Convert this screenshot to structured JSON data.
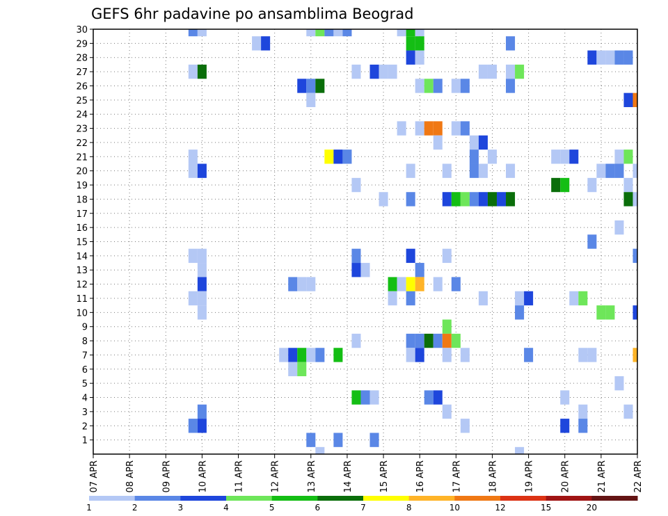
{
  "chart_data": {
    "type": "heatmap",
    "title": "GEFS 6hr padavine po ansamblima Beograd",
    "xlabel": "",
    "ylabel": "",
    "x_ticks": [
      "07 APR",
      "08 APR",
      "09 APR",
      "10 APR",
      "11 APR",
      "12 APR",
      "13 APR",
      "14 APR",
      "15 APR",
      "16 APR",
      "17 APR",
      "18 APR",
      "19 APR",
      "20 APR",
      "21 APR",
      "22 APR"
    ],
    "y_ticks": [
      "1",
      "2",
      "3",
      "4",
      "5",
      "6",
      "7",
      "8",
      "9",
      "10",
      "11",
      "12",
      "13",
      "14",
      "15",
      "16",
      "17",
      "18",
      "19",
      "20",
      "21",
      "22",
      "23",
      "24",
      "25",
      "26",
      "27",
      "28",
      "29",
      "30"
    ],
    "y_range": [
      0,
      30
    ],
    "x_step_hours": 6,
    "grid": true,
    "grid_style": "dotted",
    "legend": {
      "placement": "bottom",
      "thresholds": [
        "1",
        "2",
        "3",
        "4",
        "5",
        "6",
        "7",
        "8",
        "10",
        "12",
        "15",
        "20"
      ],
      "colors": [
        "#b4c8f5",
        "#5a87e6",
        "#1e46dc",
        "#6ee65a",
        "#14be14",
        "#0a6e0a",
        "#ffff00",
        "#ffb428",
        "#f07814",
        "#dc3214",
        "#a01414",
        "#641414"
      ]
    },
    "cells": [
      {
        "member": 30,
        "time": "09 APR 18Z",
        "level": 2
      },
      {
        "member": 30,
        "time": "10 APR 00Z",
        "level": 1
      },
      {
        "member": 30,
        "time": "13 APR 00Z",
        "level": 1
      },
      {
        "member": 30,
        "time": "13 APR 06Z",
        "level": 4
      },
      {
        "member": 30,
        "time": "13 APR 12Z",
        "level": 2
      },
      {
        "member": 30,
        "time": "13 APR 18Z",
        "level": 1
      },
      {
        "member": 30,
        "time": "14 APR 00Z",
        "level": 2
      },
      {
        "member": 30,
        "time": "15 APR 12Z",
        "level": 1
      },
      {
        "member": 30,
        "time": "15 APR 18Z",
        "level": 5
      },
      {
        "member": 30,
        "time": "16 APR 00Z",
        "level": 1
      },
      {
        "member": 29,
        "time": "11 APR 12Z",
        "level": 1
      },
      {
        "member": 29,
        "time": "11 APR 18Z",
        "level": 3
      },
      {
        "member": 29,
        "time": "15 APR 18Z",
        "level": 5
      },
      {
        "member": 29,
        "time": "16 APR 00Z",
        "level": 5
      },
      {
        "member": 29,
        "time": "18 APR 12Z",
        "level": 2
      },
      {
        "member": 28,
        "time": "15 APR 18Z",
        "level": 3
      },
      {
        "member": 28,
        "time": "16 APR 00Z",
        "level": 1
      },
      {
        "member": 28,
        "time": "20 APR 18Z",
        "level": 3
      },
      {
        "member": 28,
        "time": "21 APR 00Z",
        "level": 1
      },
      {
        "member": 28,
        "time": "21 APR 06Z",
        "level": 1
      },
      {
        "member": 28,
        "time": "21 APR 12Z",
        "level": 2
      },
      {
        "member": 28,
        "time": "21 APR 18Z",
        "level": 2
      },
      {
        "member": 27,
        "time": "09 APR 18Z",
        "level": 1
      },
      {
        "member": 27,
        "time": "10 APR 00Z",
        "level": 6
      },
      {
        "member": 27,
        "time": "14 APR 06Z",
        "level": 1
      },
      {
        "member": 27,
        "time": "14 APR 18Z",
        "level": 3
      },
      {
        "member": 27,
        "time": "15 APR 00Z",
        "level": 1
      },
      {
        "member": 27,
        "time": "15 APR 06Z",
        "level": 1
      },
      {
        "member": 27,
        "time": "17 APR 18Z",
        "level": 1
      },
      {
        "member": 27,
        "time": "18 APR 00Z",
        "level": 1
      },
      {
        "member": 27,
        "time": "18 APR 12Z",
        "level": 1
      },
      {
        "member": 27,
        "time": "18 APR 18Z",
        "level": 4
      },
      {
        "member": 26,
        "time": "12 APR 18Z",
        "level": 3
      },
      {
        "member": 26,
        "time": "13 APR 00Z",
        "level": 2
      },
      {
        "member": 26,
        "time": "13 APR 06Z",
        "level": 6
      },
      {
        "member": 26,
        "time": "16 APR 00Z",
        "level": 1
      },
      {
        "member": 26,
        "time": "16 APR 06Z",
        "level": 4
      },
      {
        "member": 26,
        "time": "16 APR 12Z",
        "level": 2
      },
      {
        "member": 26,
        "time": "17 APR 00Z",
        "level": 1
      },
      {
        "member": 26,
        "time": "17 APR 06Z",
        "level": 2
      },
      {
        "member": 26,
        "time": "18 APR 12Z",
        "level": 2
      },
      {
        "member": 25,
        "time": "13 APR 00Z",
        "level": 1
      },
      {
        "member": 25,
        "time": "21 APR 18Z",
        "level": 3
      },
      {
        "member": 25,
        "time": "22 APR 00Z",
        "level": 9
      },
      {
        "member": 23,
        "time": "15 APR 12Z",
        "level": 1
      },
      {
        "member": 23,
        "time": "16 APR 00Z",
        "level": 1
      },
      {
        "member": 23,
        "time": "16 APR 06Z",
        "level": 9
      },
      {
        "member": 23,
        "time": "16 APR 12Z",
        "level": 9
      },
      {
        "member": 23,
        "time": "17 APR 00Z",
        "level": 1
      },
      {
        "member": 23,
        "time": "17 APR 06Z",
        "level": 2
      },
      {
        "member": 22,
        "time": "16 APR 12Z",
        "level": 1
      },
      {
        "member": 22,
        "time": "17 APR 12Z",
        "level": 1
      },
      {
        "member": 22,
        "time": "17 APR 18Z",
        "level": 3
      },
      {
        "member": 21,
        "time": "09 APR 18Z",
        "level": 1
      },
      {
        "member": 21,
        "time": "13 APR 12Z",
        "level": 7
      },
      {
        "member": 21,
        "time": "13 APR 18Z",
        "level": 3
      },
      {
        "member": 21,
        "time": "14 APR 00Z",
        "level": 2
      },
      {
        "member": 21,
        "time": "17 APR 12Z",
        "level": 2
      },
      {
        "member": 21,
        "time": "18 APR 00Z",
        "level": 1
      },
      {
        "member": 21,
        "time": "19 APR 18Z",
        "level": 1
      },
      {
        "member": 21,
        "time": "20 APR 00Z",
        "level": 1
      },
      {
        "member": 21,
        "time": "20 APR 06Z",
        "level": 3
      },
      {
        "member": 21,
        "time": "21 APR 12Z",
        "level": 1
      },
      {
        "member": 21,
        "time": "21 APR 18Z",
        "level": 4
      },
      {
        "member": 20,
        "time": "09 APR 18Z",
        "level": 1
      },
      {
        "member": 20,
        "time": "10 APR 00Z",
        "level": 3
      },
      {
        "member": 20,
        "time": "15 APR 18Z",
        "level": 1
      },
      {
        "member": 20,
        "time": "16 APR 18Z",
        "level": 1
      },
      {
        "member": 20,
        "time": "17 APR 12Z",
        "level": 2
      },
      {
        "member": 20,
        "time": "17 APR 18Z",
        "level": 1
      },
      {
        "member": 20,
        "time": "18 APR 12Z",
        "level": 1
      },
      {
        "member": 20,
        "time": "21 APR 00Z",
        "level": 1
      },
      {
        "member": 20,
        "time": "21 APR 06Z",
        "level": 2
      },
      {
        "member": 20,
        "time": "21 APR 12Z",
        "level": 2
      },
      {
        "member": 20,
        "time": "22 APR 00Z",
        "level": 1
      },
      {
        "member": 19,
        "time": "14 APR 06Z",
        "level": 1
      },
      {
        "member": 19,
        "time": "19 APR 18Z",
        "level": 6
      },
      {
        "member": 19,
        "time": "20 APR 00Z",
        "level": 5
      },
      {
        "member": 19,
        "time": "20 APR 18Z",
        "level": 1
      },
      {
        "member": 19,
        "time": "21 APR 18Z",
        "level": 1
      },
      {
        "member": 18,
        "time": "15 APR 00Z",
        "level": 1
      },
      {
        "member": 18,
        "time": "15 APR 18Z",
        "level": 2
      },
      {
        "member": 18,
        "time": "16 APR 18Z",
        "level": 3
      },
      {
        "member": 18,
        "time": "17 APR 00Z",
        "level": 5
      },
      {
        "member": 18,
        "time": "17 APR 06Z",
        "level": 4
      },
      {
        "member": 18,
        "time": "17 APR 12Z",
        "level": 2
      },
      {
        "member": 18,
        "time": "17 APR 18Z",
        "level": 3
      },
      {
        "member": 18,
        "time": "18 APR 00Z",
        "level": 6
      },
      {
        "member": 18,
        "time": "18 APR 06Z",
        "level": 3
      },
      {
        "member": 18,
        "time": "18 APR 12Z",
        "level": 6
      },
      {
        "member": 18,
        "time": "21 APR 18Z",
        "level": 6
      },
      {
        "member": 18,
        "time": "22 APR 00Z",
        "level": 1
      },
      {
        "member": 16,
        "time": "21 APR 12Z",
        "level": 1
      },
      {
        "member": 15,
        "time": "20 APR 18Z",
        "level": 2
      },
      {
        "member": 14,
        "time": "09 APR 18Z",
        "level": 1
      },
      {
        "member": 14,
        "time": "10 APR 00Z",
        "level": 1
      },
      {
        "member": 14,
        "time": "14 APR 06Z",
        "level": 2
      },
      {
        "member": 14,
        "time": "15 APR 18Z",
        "level": 3
      },
      {
        "member": 14,
        "time": "16 APR 18Z",
        "level": 1
      },
      {
        "member": 14,
        "time": "22 APR 00Z",
        "level": 2
      },
      {
        "member": 13,
        "time": "10 APR 00Z",
        "level": 1
      },
      {
        "member": 13,
        "time": "14 APR 06Z",
        "level": 3
      },
      {
        "member": 13,
        "time": "14 APR 12Z",
        "level": 1
      },
      {
        "member": 13,
        "time": "16 APR 00Z",
        "level": 2
      },
      {
        "member": 12,
        "time": "10 APR 00Z",
        "level": 3
      },
      {
        "member": 12,
        "time": "12 APR 12Z",
        "level": 2
      },
      {
        "member": 12,
        "time": "12 APR 18Z",
        "level": 1
      },
      {
        "member": 12,
        "time": "13 APR 00Z",
        "level": 1
      },
      {
        "member": 12,
        "time": "15 APR 06Z",
        "level": 5
      },
      {
        "member": 12,
        "time": "15 APR 12Z",
        "level": 1
      },
      {
        "member": 12,
        "time": "15 APR 18Z",
        "level": 7
      },
      {
        "member": 12,
        "time": "16 APR 00Z",
        "level": 8
      },
      {
        "member": 12,
        "time": "16 APR 12Z",
        "level": 1
      },
      {
        "member": 12,
        "time": "17 APR 00Z",
        "level": 2
      },
      {
        "member": 11,
        "time": "09 APR 18Z",
        "level": 1
      },
      {
        "member": 11,
        "time": "10 APR 00Z",
        "level": 1
      },
      {
        "member": 11,
        "time": "15 APR 06Z",
        "level": 1
      },
      {
        "member": 11,
        "time": "15 APR 18Z",
        "level": 2
      },
      {
        "member": 11,
        "time": "17 APR 18Z",
        "level": 1
      },
      {
        "member": 11,
        "time": "18 APR 18Z",
        "level": 1
      },
      {
        "member": 11,
        "time": "19 APR 00Z",
        "level": 3
      },
      {
        "member": 11,
        "time": "20 APR 06Z",
        "level": 1
      },
      {
        "member": 11,
        "time": "20 APR 12Z",
        "level": 4
      },
      {
        "member": 10,
        "time": "10 APR 00Z",
        "level": 1
      },
      {
        "member": 10,
        "time": "18 APR 18Z",
        "level": 2
      },
      {
        "member": 10,
        "time": "21 APR 00Z",
        "level": 4
      },
      {
        "member": 10,
        "time": "21 APR 06Z",
        "level": 4
      },
      {
        "member": 10,
        "time": "22 APR 00Z",
        "level": 3
      },
      {
        "member": 9,
        "time": "16 APR 18Z",
        "level": 4
      },
      {
        "member": 8,
        "time": "14 APR 06Z",
        "level": 1
      },
      {
        "member": 8,
        "time": "15 APR 18Z",
        "level": 2
      },
      {
        "member": 8,
        "time": "16 APR 00Z",
        "level": 2
      },
      {
        "member": 8,
        "time": "16 APR 06Z",
        "level": 6
      },
      {
        "member": 8,
        "time": "16 APR 12Z",
        "level": 2
      },
      {
        "member": 8,
        "time": "16 APR 18Z",
        "level": 9
      },
      {
        "member": 8,
        "time": "17 APR 00Z",
        "level": 4
      },
      {
        "member": 7,
        "time": "12 APR 06Z",
        "level": 1
      },
      {
        "member": 7,
        "time": "12 APR 12Z",
        "level": 3
      },
      {
        "member": 7,
        "time": "12 APR 18Z",
        "level": 5
      },
      {
        "member": 7,
        "time": "13 APR 00Z",
        "level": 1
      },
      {
        "member": 7,
        "time": "13 APR 06Z",
        "level": 2
      },
      {
        "member": 7,
        "time": "13 APR 18Z",
        "level": 5
      },
      {
        "member": 7,
        "time": "15 APR 18Z",
        "level": 1
      },
      {
        "member": 7,
        "time": "16 APR 00Z",
        "level": 3
      },
      {
        "member": 7,
        "time": "16 APR 18Z",
        "level": 1
      },
      {
        "member": 7,
        "time": "17 APR 06Z",
        "level": 1
      },
      {
        "member": 7,
        "time": "19 APR 00Z",
        "level": 2
      },
      {
        "member": 7,
        "time": "20 APR 12Z",
        "level": 1
      },
      {
        "member": 7,
        "time": "20 APR 18Z",
        "level": 1
      },
      {
        "member": 7,
        "time": "22 APR 00Z",
        "level": 8
      },
      {
        "member": 6,
        "time": "12 APR 12Z",
        "level": 1
      },
      {
        "member": 6,
        "time": "12 APR 18Z",
        "level": 4
      },
      {
        "member": 5,
        "time": "21 APR 12Z",
        "level": 1
      },
      {
        "member": 4,
        "time": "14 APR 06Z",
        "level": 5
      },
      {
        "member": 4,
        "time": "14 APR 12Z",
        "level": 2
      },
      {
        "member": 4,
        "time": "14 APR 18Z",
        "level": 1
      },
      {
        "member": 4,
        "time": "16 APR 06Z",
        "level": 2
      },
      {
        "member": 4,
        "time": "16 APR 12Z",
        "level": 3
      },
      {
        "member": 4,
        "time": "20 APR 00Z",
        "level": 1
      },
      {
        "member": 3,
        "time": "10 APR 00Z",
        "level": 2
      },
      {
        "member": 3,
        "time": "16 APR 18Z",
        "level": 1
      },
      {
        "member": 3,
        "time": "20 APR 12Z",
        "level": 1
      },
      {
        "member": 3,
        "time": "21 APR 18Z",
        "level": 1
      },
      {
        "member": 2,
        "time": "09 APR 18Z",
        "level": 2
      },
      {
        "member": 2,
        "time": "10 APR 00Z",
        "level": 3
      },
      {
        "member": 2,
        "time": "17 APR 06Z",
        "level": 1
      },
      {
        "member": 2,
        "time": "20 APR 00Z",
        "level": 3
      },
      {
        "member": 2,
        "time": "20 APR 12Z",
        "level": 2
      },
      {
        "member": 1,
        "time": "13 APR 00Z",
        "level": 2
      },
      {
        "member": 1,
        "time": "13 APR 18Z",
        "level": 2
      },
      {
        "member": 1,
        "time": "14 APR 18Z",
        "level": 2
      },
      {
        "member": 0,
        "time": "13 APR 06Z",
        "level": 1
      },
      {
        "member": 0,
        "time": "18 APR 18Z",
        "level": 1
      }
    ]
  }
}
